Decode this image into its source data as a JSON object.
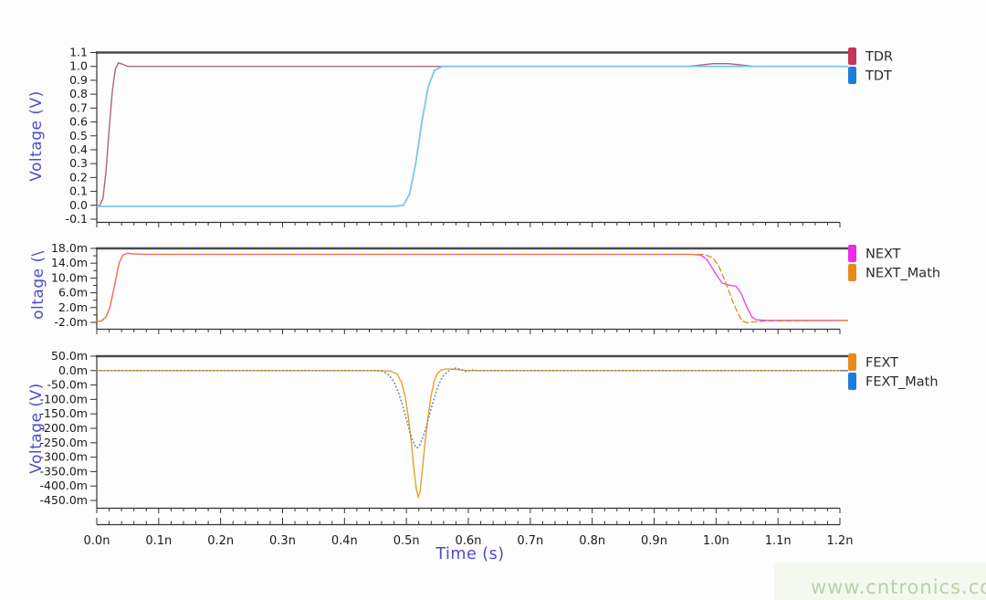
{
  "watermark": {
    "text": "www.cntronics.com",
    "color": "#b7d3a6"
  },
  "xaxis": {
    "title": "Time (s)",
    "title_color": "#4d4dc8",
    "range_ns": [
      0,
      1.2
    ],
    "major_ticks": [
      0,
      0.1,
      0.2,
      0.3,
      0.4,
      0.5,
      0.6,
      0.7,
      0.8,
      0.9,
      1.0,
      1.1,
      1.2
    ],
    "major_labels": [
      "0.0n",
      "0.1n",
      "0.2n",
      "0.3n",
      "0.4n",
      "0.5n",
      "0.6n",
      "0.7n",
      "0.8n",
      "0.9n",
      "1.0n",
      "1.1n",
      "1.2n"
    ],
    "minor_step_ns": 0.02
  },
  "chart_data": [
    {
      "type": "line",
      "title": "",
      "ylabel": "Voltage (V)",
      "ylabel_color": "#4d4dc8",
      "unit": "V",
      "ylim": [
        -0.1,
        1.1
      ],
      "grid": false,
      "legend_position": "right-top",
      "yticks": {
        "values": [
          1.1,
          1.0,
          0.9,
          0.8,
          0.7,
          0.6,
          0.5,
          0.4,
          0.3,
          0.2,
          0.1,
          0.0,
          -0.1
        ],
        "labels": [
          "1.1",
          "1.0",
          "0.9",
          "0.8",
          "0.7",
          "0.6",
          "0.5",
          "0.4",
          "0.3",
          "0.2",
          "0.1",
          "0.0",
          "-0.1"
        ]
      },
      "yticks_minor": [],
      "legend": [
        {
          "label": "TDR",
          "swatch": "#c83358"
        },
        {
          "label": "TDT",
          "swatch": "#1b7ede"
        }
      ],
      "series": [
        {
          "name": "TDR",
          "color": "#a8687a",
          "width": 1.4,
          "style": "solid",
          "points": [
            [
              0,
              -0.005
            ],
            [
              0.005,
              0
            ],
            [
              0.01,
              0.05
            ],
            [
              0.015,
              0.25
            ],
            [
              0.02,
              0.55
            ],
            [
              0.025,
              0.82
            ],
            [
              0.03,
              0.98
            ],
            [
              0.035,
              1.025
            ],
            [
              0.042,
              1.015
            ],
            [
              0.05,
              1.0
            ],
            [
              0.9,
              1.0
            ],
            [
              0.955,
              1.0
            ],
            [
              0.975,
              1.01
            ],
            [
              0.995,
              1.02
            ],
            [
              1.02,
              1.02
            ],
            [
              1.045,
              1.008
            ],
            [
              1.06,
              1.0
            ],
            [
              1.2,
              1.0
            ]
          ]
        },
        {
          "name": "TDT",
          "color": "#7fc6ea",
          "width": 1.8,
          "style": "solid",
          "points": [
            [
              0,
              -0.008
            ],
            [
              0.48,
              -0.008
            ],
            [
              0.495,
              0
            ],
            [
              0.505,
              0.08
            ],
            [
              0.515,
              0.3
            ],
            [
              0.525,
              0.6
            ],
            [
              0.535,
              0.85
            ],
            [
              0.545,
              0.97
            ],
            [
              0.558,
              1.0
            ],
            [
              1.2,
              1.0
            ]
          ]
        }
      ]
    },
    {
      "type": "line",
      "title": "",
      "ylabel": "oltage (\\",
      "ylabel_color": "#4d4dc8",
      "unit": "mV",
      "ylim": [
        -2,
        18
      ],
      "grid": false,
      "legend_position": "right-top",
      "yticks": {
        "values": [
          18,
          14,
          10,
          6,
          2,
          -2
        ],
        "labels": [
          "18.0m",
          "14.0m",
          "10.0m",
          "6.0m",
          "2.0m",
          "-2.0m"
        ]
      },
      "yticks_minor": [
        16,
        12,
        8,
        4,
        0
      ],
      "legend": [
        {
          "label": "NEXT",
          "swatch": "#ea2bea"
        },
        {
          "label": "NEXT_Math",
          "swatch": "#e68a1a"
        }
      ],
      "series": [
        {
          "name": "NEXT",
          "color": "#ee3cee",
          "width": 1.3,
          "style": "solid",
          "points": [
            [
              0,
              -1.8
            ],
            [
              0.008,
              -1.6
            ],
            [
              0.015,
              -0.5
            ],
            [
              0.022,
              2.5
            ],
            [
              0.03,
              9
            ],
            [
              0.036,
              14
            ],
            [
              0.042,
              16.2
            ],
            [
              0.05,
              16.7
            ],
            [
              0.06,
              16.5
            ],
            [
              0.08,
              16.4
            ],
            [
              0.5,
              16.4
            ],
            [
              0.96,
              16.4
            ],
            [
              0.975,
              16.2
            ],
            [
              0.985,
              15
            ],
            [
              1.0,
              11
            ],
            [
              1.01,
              8.6
            ],
            [
              1.02,
              8.1
            ],
            [
              1.032,
              7.8
            ],
            [
              1.04,
              6
            ],
            [
              1.05,
              2
            ],
            [
              1.058,
              -0.6
            ],
            [
              1.065,
              -1.3
            ],
            [
              1.08,
              -1.45
            ],
            [
              1.2,
              -1.45
            ]
          ]
        },
        {
          "name": "NEXT_Math",
          "color": "#e8891c",
          "width": 1.3,
          "style": "dashed",
          "points": [
            [
              0,
              -1.8
            ],
            [
              0.008,
              -1.6
            ],
            [
              0.015,
              -0.5
            ],
            [
              0.022,
              2.5
            ],
            [
              0.03,
              9
            ],
            [
              0.036,
              14
            ],
            [
              0.042,
              16.2
            ],
            [
              0.05,
              16.7
            ],
            [
              0.06,
              16.5
            ],
            [
              0.08,
              16.4
            ],
            [
              0.5,
              16.4
            ],
            [
              0.98,
              16.4
            ],
            [
              0.995,
              15.5
            ],
            [
              1.005,
              13
            ],
            [
              1.015,
              9
            ],
            [
              1.025,
              4.5
            ],
            [
              1.035,
              0.5
            ],
            [
              1.042,
              -1.6
            ],
            [
              1.05,
              -2.1
            ],
            [
              1.06,
              -1.9
            ],
            [
              1.08,
              -1.6
            ],
            [
              1.2,
              -1.5
            ]
          ]
        }
      ]
    },
    {
      "type": "line",
      "title": "",
      "ylabel": "Voltage (V)",
      "ylabel_color": "#4d4dc8",
      "unit": "mV",
      "ylim": [
        -450,
        50
      ],
      "grid": false,
      "legend_position": "right-top",
      "yticks": {
        "values": [
          50,
          0,
          -50,
          -100,
          -150,
          -200,
          -250,
          -300,
          -350,
          -400,
          -450
        ],
        "labels": [
          "50.0m",
          "0.0m",
          "-50.0m",
          "-100.0m",
          "-150.0m",
          "-200.0m",
          "-250.0m",
          "-300.0m",
          "-350.0m",
          "-400.0m",
          "-450.0m"
        ]
      },
      "yticks_minor": [],
      "legend": [
        {
          "label": "FEXT",
          "swatch": "#e68a1a"
        },
        {
          "label": "FEXT_Math",
          "swatch": "#1b7ede"
        }
      ],
      "series": [
        {
          "name": "FEXT",
          "color": "#e8a02c",
          "width": 1.4,
          "style": "solid",
          "points": [
            [
              0,
              0
            ],
            [
              0.46,
              0
            ],
            [
              0.475,
              -2
            ],
            [
              0.485,
              -12
            ],
            [
              0.492,
              -40
            ],
            [
              0.498,
              -90
            ],
            [
              0.503,
              -160
            ],
            [
              0.508,
              -250
            ],
            [
              0.512,
              -340
            ],
            [
              0.516,
              -410
            ],
            [
              0.519,
              -438
            ],
            [
              0.522,
              -420
            ],
            [
              0.526,
              -340
            ],
            [
              0.53,
              -250
            ],
            [
              0.535,
              -160
            ],
            [
              0.54,
              -85
            ],
            [
              0.545,
              -35
            ],
            [
              0.55,
              -10
            ],
            [
              0.556,
              2
            ],
            [
              0.565,
              6
            ],
            [
              0.58,
              4
            ],
            [
              0.6,
              0
            ],
            [
              1.2,
              0
            ]
          ]
        },
        {
          "name": "FEXT_Math",
          "color": "#80858f",
          "width": 1.6,
          "style": "dotted",
          "points": [
            [
              0,
              0
            ],
            [
              0.45,
              0
            ],
            [
              0.462,
              -3
            ],
            [
              0.472,
              -15
            ],
            [
              0.48,
              -40
            ],
            [
              0.488,
              -80
            ],
            [
              0.495,
              -130
            ],
            [
              0.502,
              -185
            ],
            [
              0.508,
              -230
            ],
            [
              0.513,
              -258
            ],
            [
              0.517,
              -268
            ],
            [
              0.521,
              -260
            ],
            [
              0.526,
              -235
            ],
            [
              0.532,
              -195
            ],
            [
              0.538,
              -145
            ],
            [
              0.545,
              -95
            ],
            [
              0.552,
              -50
            ],
            [
              0.558,
              -22
            ],
            [
              0.565,
              -6
            ],
            [
              0.572,
              4
            ],
            [
              0.58,
              9
            ],
            [
              0.588,
              4
            ],
            [
              0.595,
              -3
            ],
            [
              0.605,
              2
            ],
            [
              0.615,
              0
            ],
            [
              1.2,
              0
            ]
          ]
        }
      ]
    }
  ]
}
